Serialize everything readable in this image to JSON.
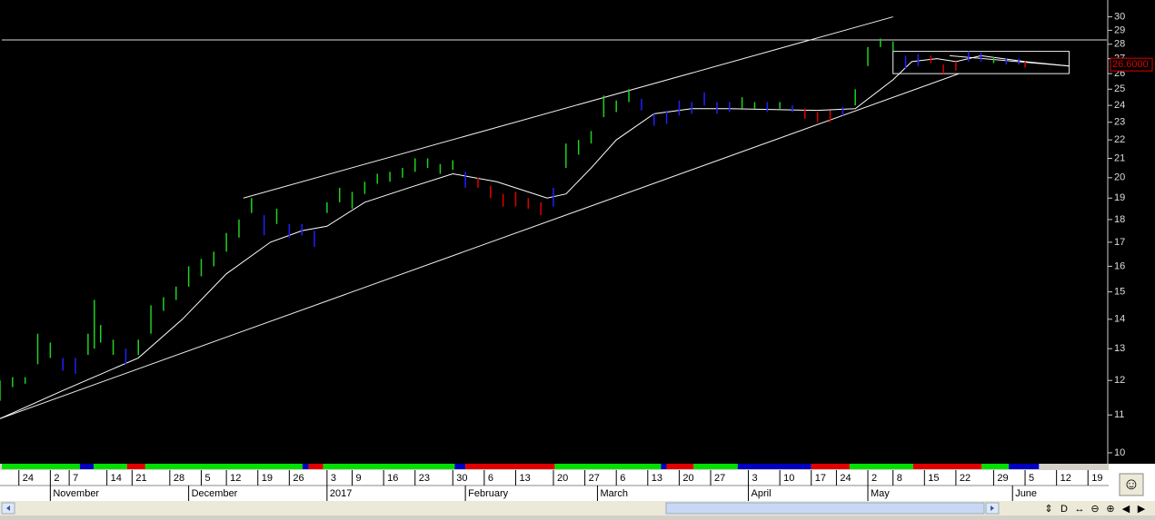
{
  "chart_data": {
    "type": "ohlc",
    "log_y": true,
    "ylim": [
      9.75,
      31.3
    ],
    "yticks": [
      10,
      11,
      12,
      13,
      14,
      15,
      16,
      17,
      18,
      19,
      20,
      21,
      22,
      23,
      24,
      25,
      26,
      27,
      28,
      29,
      30
    ],
    "xlim": [
      0,
      176
    ],
    "day_ticks": [
      {
        "value": 3,
        "label": "24"
      },
      {
        "value": 8,
        "label": "2"
      },
      {
        "value": 11,
        "label": "7"
      },
      {
        "value": 17,
        "label": "14"
      },
      {
        "value": 21,
        "label": "21"
      },
      {
        "value": 27,
        "label": "28"
      },
      {
        "value": 32,
        "label": "5"
      },
      {
        "value": 36,
        "label": "12"
      },
      {
        "value": 41,
        "label": "19"
      },
      {
        "value": 46,
        "label": "26"
      },
      {
        "value": 52,
        "label": "3"
      },
      {
        "value": 56,
        "label": "9"
      },
      {
        "value": 61,
        "label": "16"
      },
      {
        "value": 66,
        "label": "23"
      },
      {
        "value": 72,
        "label": "30"
      },
      {
        "value": 77,
        "label": "6"
      },
      {
        "value": 82,
        "label": "13"
      },
      {
        "value": 88,
        "label": "20"
      },
      {
        "value": 93,
        "label": "27"
      },
      {
        "value": 98,
        "label": "6"
      },
      {
        "value": 103,
        "label": "13"
      },
      {
        "value": 108,
        "label": "20"
      },
      {
        "value": 113,
        "label": "27"
      },
      {
        "value": 119,
        "label": "3"
      },
      {
        "value": 124,
        "label": "10"
      },
      {
        "value": 129,
        "label": "17"
      },
      {
        "value": 133,
        "label": "24"
      },
      {
        "value": 138,
        "label": "2"
      },
      {
        "value": 142,
        "label": "8"
      },
      {
        "value": 147,
        "label": "15"
      },
      {
        "value": 152,
        "label": "22"
      },
      {
        "value": 158,
        "label": "29"
      },
      {
        "value": 163,
        "label": "5"
      },
      {
        "value": 168,
        "label": "12"
      },
      {
        "value": 173,
        "label": "19"
      }
    ],
    "month_ticks": [
      {
        "value": 8,
        "label": "November"
      },
      {
        "value": 30,
        "label": "December"
      },
      {
        "value": 52,
        "label": "2017"
      },
      {
        "value": 74,
        "label": "February"
      },
      {
        "value": 95,
        "label": "March"
      },
      {
        "value": 119,
        "label": "April"
      },
      {
        "value": 138,
        "label": "May"
      },
      {
        "value": 161,
        "label": "June"
      }
    ],
    "bars": {
      "x": [
        0,
        2,
        4,
        6,
        8,
        10,
        12,
        14,
        15,
        16,
        18,
        20,
        22,
        24,
        26,
        28,
        30,
        32,
        34,
        36,
        38,
        40,
        42,
        44,
        46,
        48,
        50,
        52,
        54,
        56,
        58,
        60,
        62,
        64,
        66,
        68,
        70,
        72,
        74,
        76,
        78,
        80,
        82,
        84,
        86,
        88,
        90,
        92,
        94,
        96,
        98,
        100,
        102,
        104,
        106,
        108,
        110,
        112,
        114,
        116,
        118,
        120,
        122,
        124,
        126,
        128,
        130,
        132,
        134,
        136,
        138,
        140,
        142,
        144,
        146,
        148,
        150,
        152,
        154,
        156,
        158,
        160,
        162,
        163
      ],
      "high": [
        12,
        12.1,
        12.1,
        13.5,
        13.2,
        12.7,
        12.7,
        13.5,
        14.7,
        13.8,
        13.3,
        13,
        13.3,
        14.5,
        14.8,
        15.2,
        16,
        16.3,
        16.6,
        17.4,
        18,
        19,
        18.2,
        18.5,
        17.8,
        17.8,
        17.5,
        18.8,
        19.5,
        19.3,
        19.8,
        20.2,
        20.3,
        20.5,
        21,
        21,
        20.7,
        20.9,
        20.3,
        20,
        19.6,
        19.2,
        19.3,
        19,
        18.8,
        19.5,
        21.8,
        22,
        22.5,
        24.6,
        24.3,
        25,
        24.4,
        23.5,
        23.7,
        24.3,
        24.2,
        24.8,
        24.2,
        24.2,
        24.5,
        24.2,
        24.2,
        24.2,
        24,
        23.8,
        23.6,
        23.7,
        23.9,
        25,
        27.8,
        28.4,
        28.2,
        27.2,
        27.3,
        27.2,
        26.6,
        26.8,
        27.5,
        27.4,
        27.1,
        27,
        27,
        26.8
      ],
      "low": [
        11.4,
        11.8,
        11.9,
        12.5,
        12.7,
        12.3,
        12.2,
        12.8,
        13,
        13.2,
        12.8,
        12.5,
        12.8,
        13.5,
        14.3,
        14.7,
        15.2,
        15.6,
        16,
        16.6,
        17.2,
        18.3,
        17.3,
        17.8,
        17.2,
        17.3,
        16.8,
        18.3,
        18.8,
        18.5,
        19.2,
        19.7,
        19.8,
        20,
        20.3,
        20.5,
        20.2,
        20.4,
        19.5,
        19.5,
        19,
        18.6,
        18.6,
        18.5,
        18.2,
        18.6,
        20.5,
        21.2,
        21.8,
        23.3,
        23.6,
        24.2,
        23.7,
        22.8,
        22.9,
        23.4,
        23.5,
        24,
        23.5,
        23.6,
        23.8,
        23.8,
        23.6,
        23.8,
        23.6,
        23.2,
        23,
        23,
        23.4,
        24,
        26.5,
        27.8,
        27.5,
        26.3,
        26.5,
        26.7,
        26,
        26.2,
        26.8,
        26.8,
        26.7,
        26.6,
        26.6,
        26.4
      ],
      "colors": [
        "#20d020",
        "#20d020",
        "#20d020",
        "#20d020",
        "#20d020",
        "#2020ff",
        "#2020ff",
        "#20d020",
        "#20d020",
        "#20d020",
        "#20d020",
        "#2020ff",
        "#20d020",
        "#20d020",
        "#20d020",
        "#20d020",
        "#20d020",
        "#20d020",
        "#20d020",
        "#20d020",
        "#20d020",
        "#20d020",
        "#2020ff",
        "#20d020",
        "#2020ff",
        "#2020ff",
        "#2020ff",
        "#20d020",
        "#20d020",
        "#20d020",
        "#20d020",
        "#20d020",
        "#20d020",
        "#20d020",
        "#20d020",
        "#20d020",
        "#20d020",
        "#20d020",
        "#2020ff",
        "#e00000",
        "#e00000",
        "#e00000",
        "#e00000",
        "#e00000",
        "#e00000",
        "#2020ff",
        "#20d020",
        "#20d020",
        "#20d020",
        "#20d020",
        "#20d020",
        "#20d020",
        "#2020ff",
        "#2020ff",
        "#2020ff",
        "#2020ff",
        "#2020ff",
        "#2020ff",
        "#2020ff",
        "#2020ff",
        "#20d020",
        "#20d020",
        "#2020ff",
        "#20d020",
        "#2020ff",
        "#e00000",
        "#e00000",
        "#e00000",
        "#2020ff",
        "#20d020",
        "#20d020",
        "#20d020",
        "#20d020",
        "#2020ff",
        "#2020ff",
        "#e00000",
        "#e00000",
        "#e00000",
        "#2020ff",
        "#2020ff",
        "#20d020",
        "#2020ff",
        "#2020ff",
        "#e00000"
      ]
    },
    "ma": {
      "x": [
        0,
        10,
        22,
        29,
        36,
        43,
        48,
        52,
        58,
        65,
        72,
        79,
        87,
        90,
        94,
        98,
        104,
        110,
        116,
        130,
        136,
        142,
        145,
        149,
        152,
        156,
        163,
        170
      ],
      "values": [
        10.9,
        11.7,
        12.7,
        14,
        15.7,
        17,
        17.5,
        17.7,
        18.8,
        19.5,
        20.2,
        19.8,
        19,
        19.2,
        20.5,
        22,
        23.5,
        23.8,
        23.8,
        23.7,
        23.8,
        25.6,
        26.8,
        27,
        26.8,
        27.2,
        26.8,
        26.5
      ]
    },
    "trend_lines": [
      {
        "x": [
          38.7,
          142
        ],
        "y": [
          19,
          30
        ]
      },
      {
        "x": [
          0,
          152.5
        ],
        "y": [
          10.9,
          26
        ]
      },
      {
        "x": [
          151,
          170
        ],
        "y": [
          27.2,
          26.5
        ]
      }
    ],
    "hline": 28.3,
    "box": {
      "x": [
        142,
        170
      ],
      "y": [
        26,
        27.5
      ]
    },
    "last_price": {
      "value": 26.6,
      "label": "26.6000"
    },
    "strip": {
      "edges": [
        0.3,
        12.7,
        14.9,
        20.2,
        23.1,
        48.1,
        49.1,
        51.4,
        72.3,
        74,
        88.2,
        105.1,
        106,
        110.3,
        117.3,
        129,
        135.1,
        145.2,
        156.1,
        160.4,
        165.2
      ],
      "colors": [
        "#00e000",
        "#0000c0",
        "#00e000",
        "#e00000",
        "#00e000",
        "#0000c0",
        "#e00000",
        "#00e000",
        "#0000c0",
        "#e00000",
        "#00e000",
        "#0000c0",
        "#e00000",
        "#00e000",
        "#0000c0",
        "#e00000",
        "#00e000",
        "#e00000",
        "#00e000",
        "#0000c0"
      ]
    }
  },
  "ui": {
    "toolbar": [
      "⇕",
      "D",
      "↔",
      "⊖",
      "⊕",
      "◀",
      "▶"
    ],
    "smiley": "☺"
  }
}
